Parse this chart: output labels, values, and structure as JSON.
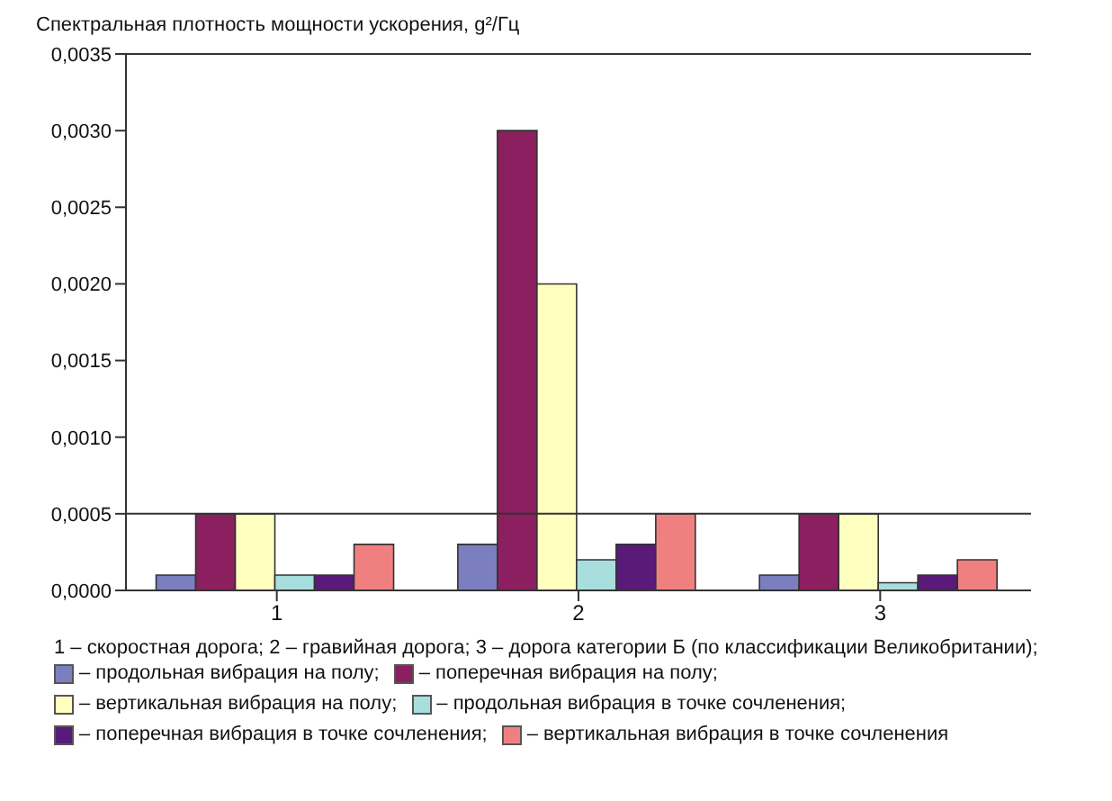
{
  "chart_data": {
    "type": "bar",
    "title": "Спектральная плотность мощности ускорения, g²/Гц",
    "categories": [
      "1",
      "2",
      "3"
    ],
    "series": [
      {
        "name": "– продольная вибрация на полу;",
        "color": "#7b7fbf",
        "values": [
          0.0001,
          0.0003,
          0.0001
        ]
      },
      {
        "name": "– поперечная вибрация на полу;",
        "color": "#8b1f5f",
        "values": [
          0.0005,
          0.003,
          0.0005
        ]
      },
      {
        "name": "– вертикальная вибрация на полу;",
        "color": "#ffffc0",
        "values": [
          0.0005,
          0.002,
          0.0005
        ]
      },
      {
        "name": "– продольная вибрация в точке сочленения;",
        "color": "#a8dede",
        "values": [
          0.0001,
          0.0002,
          5e-05
        ]
      },
      {
        "name": "– поперечная вибрация в точке сочленения;",
        "color": "#5a1a78",
        "values": [
          0.0001,
          0.0003,
          0.0001
        ]
      },
      {
        "name": "– вертикальная вибрация в точке сочленения",
        "color": "#f08080",
        "values": [
          0.0003,
          0.0005,
          0.0002
        ]
      }
    ],
    "ylim": [
      0,
      0.0035
    ],
    "yticks": [
      {
        "value": 0,
        "label": "0,0000"
      },
      {
        "value": 0.0005,
        "label": "0,0005"
      },
      {
        "value": 0.001,
        "label": "0,0010"
      },
      {
        "value": 0.0015,
        "label": "0,0015"
      },
      {
        "value": 0.002,
        "label": "0,0020"
      },
      {
        "value": 0.0025,
        "label": "0,0025"
      },
      {
        "value": 0.003,
        "label": "0,0030"
      },
      {
        "value": 0.0035,
        "label": "0,0035"
      }
    ],
    "ref_lines": [
      {
        "axis": "y",
        "value": 0.0005,
        "color": "#333333"
      }
    ],
    "legend": "bottom",
    "annotations": [
      "1 – скоростная дорога; 2 – гравийная дорога; 3 – дорога категории Б (по классификации Великобритании);"
    ]
  }
}
